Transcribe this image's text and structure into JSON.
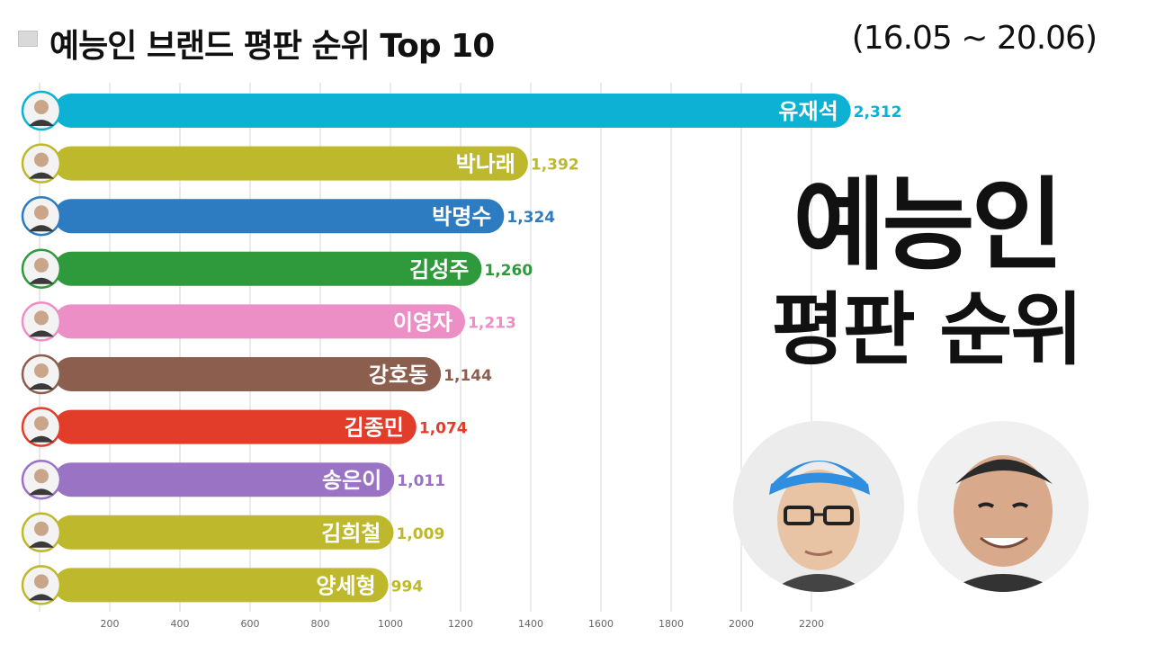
{
  "header": {
    "title": "예능인 브랜드 평판 순위 Top 10",
    "date_range": "(16.05 ~ 20.06)"
  },
  "side_text": {
    "line1": "예능인",
    "line2": "평판 순위"
  },
  "chart_data": {
    "type": "bar",
    "orientation": "horizontal",
    "categories": [
      "유재석",
      "박나래",
      "박명수",
      "김성주",
      "이영자",
      "강호동",
      "김종민",
      "송은이",
      "김희철",
      "양세형"
    ],
    "values": [
      2312,
      1392,
      1324,
      1260,
      1213,
      1144,
      1074,
      1011,
      1009,
      994
    ],
    "value_labels": [
      "2,312",
      "1,392",
      "1,324",
      "1,260",
      "1,213",
      "1,144",
      "1,074",
      "1,011",
      "1,009",
      "994"
    ],
    "colors": [
      "#0cb1d3",
      "#bdb82c",
      "#2d7bc0",
      "#2f9a3c",
      "#ec8fc7",
      "#8c5e4d",
      "#e23d2b",
      "#9b73c4",
      "#bdb82c",
      "#bdb82c"
    ],
    "x_ticks": [
      200,
      400,
      600,
      800,
      1000,
      1200,
      1400,
      1600,
      1800,
      2000,
      2200
    ],
    "x_tick_labels": [
      "200",
      "400",
      "600",
      "800",
      "1000",
      "1200",
      "1400",
      "1600",
      "1800",
      "2000",
      "2200"
    ],
    "xlim": [
      0,
      2400
    ],
    "grid": true
  }
}
